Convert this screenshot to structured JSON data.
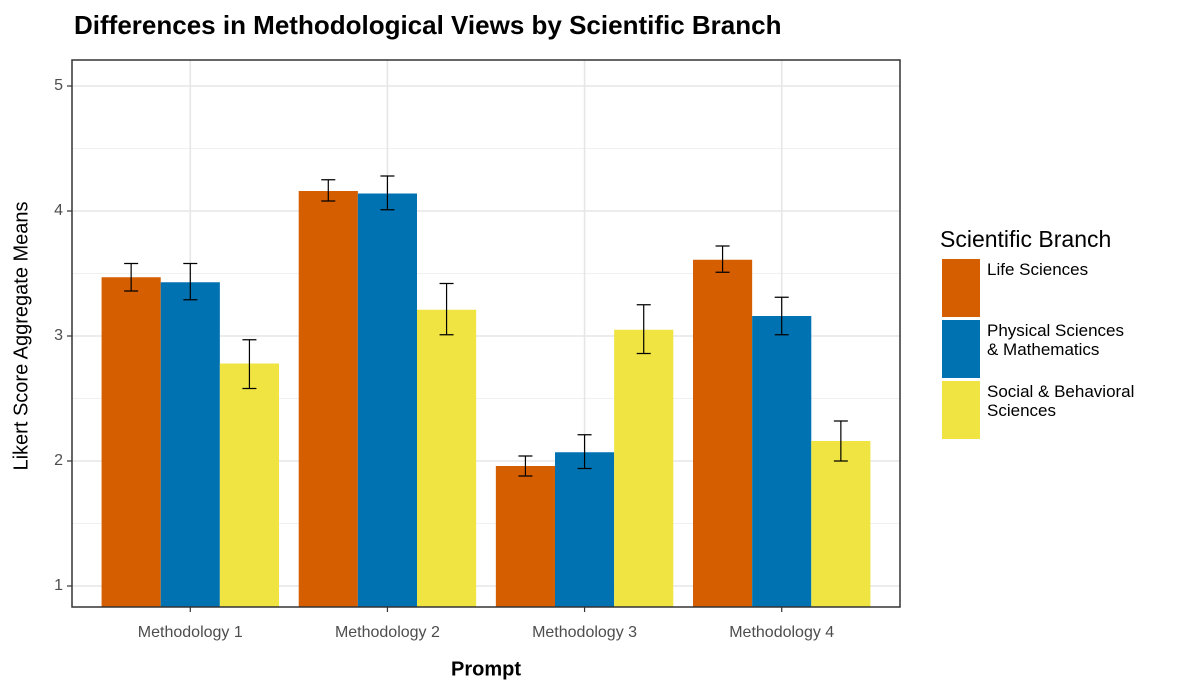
{
  "chart_data": {
    "type": "bar",
    "title": "Differences in Methodological Views by Scientific Branch",
    "x_label": "Prompt",
    "y_label": "Likert Score Aggregate Means",
    "legend_title": "Scientific Branch",
    "legend_position": "right",
    "grid": true,
    "categories": [
      "Methodology 1",
      "Methodology 2",
      "Methodology 3",
      "Methodology 4"
    ],
    "series": [
      {
        "name": "Life Sciences",
        "color": "#d55e00",
        "values": [
          3.47,
          4.16,
          1.96,
          3.61
        ],
        "lower": [
          3.36,
          4.08,
          1.88,
          3.51
        ],
        "upper": [
          3.58,
          4.25,
          2.04,
          3.72
        ]
      },
      {
        "name": "Physical Sciences\n& Mathematics",
        "color": "#0072b2",
        "values": [
          3.43,
          4.14,
          2.07,
          3.16
        ],
        "lower": [
          3.29,
          4.01,
          1.94,
          3.01
        ],
        "upper": [
          3.58,
          4.28,
          2.21,
          3.31
        ]
      },
      {
        "name": "Social & Behavioral\nSciences",
        "color": "#f0e442",
        "values": [
          2.78,
          3.21,
          3.05,
          2.16
        ],
        "lower": [
          2.58,
          3.01,
          2.86,
          2.0
        ],
        "upper": [
          2.97,
          3.42,
          3.25,
          2.32
        ]
      }
    ],
    "ylim": [
      0.832,
      5.208
    ],
    "yticks": [
      1,
      2,
      3,
      4,
      5
    ],
    "minor_yticks": [
      1.5,
      2.5,
      3.5,
      4.5
    ]
  }
}
